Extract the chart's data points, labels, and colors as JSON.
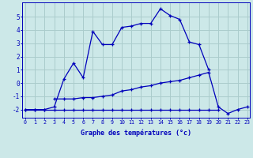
{
  "xlabel": "Graphe des températures (°c)",
  "background_color": "#cce8e8",
  "grid_color": "#aacccc",
  "line_color": "#0000bb",
  "hours": [
    0,
    1,
    2,
    3,
    4,
    5,
    6,
    7,
    8,
    9,
    10,
    11,
    12,
    13,
    14,
    15,
    16,
    17,
    18,
    19,
    20,
    21,
    22,
    23
  ],
  "line_max": [
    -2.0,
    -2.0,
    -2.0,
    -1.8,
    0.3,
    1.5,
    0.4,
    3.9,
    2.9,
    2.9,
    4.2,
    4.3,
    4.5,
    4.5,
    5.6,
    5.1,
    4.8,
    3.1,
    2.9,
    1.0,
    null,
    null,
    null,
    null
  ],
  "line_mid": [
    null,
    null,
    null,
    -1.2,
    -1.2,
    -1.2,
    -1.1,
    -1.1,
    -1.0,
    -0.9,
    -0.6,
    -0.5,
    -0.3,
    -0.2,
    0.0,
    0.1,
    0.2,
    0.4,
    0.6,
    0.8,
    -1.8,
    -2.3,
    -2.0,
    -1.8
  ],
  "line_bot": [
    -2.0,
    -2.0,
    -2.0,
    -2.0,
    -2.0,
    -2.0,
    -2.0,
    -2.0,
    -2.0,
    -2.0,
    -2.0,
    -2.0,
    -2.0,
    -2.0,
    -2.0,
    -2.0,
    -2.0,
    -2.0,
    -2.0,
    -2.0,
    -2.0,
    null,
    null,
    null
  ],
  "ylim": [
    -2.6,
    6.1
  ],
  "xlim": [
    -0.3,
    23.3
  ],
  "yticks": [
    -2,
    -1,
    0,
    1,
    2,
    3,
    4,
    5
  ],
  "xtick_labels": [
    "0",
    "1",
    "2",
    "3",
    "4",
    "5",
    "6",
    "7",
    "8",
    "9",
    "10",
    "11",
    "12",
    "13",
    "14",
    "15",
    "16",
    "17",
    "18",
    "19",
    "20",
    "21",
    "22",
    "23"
  ]
}
